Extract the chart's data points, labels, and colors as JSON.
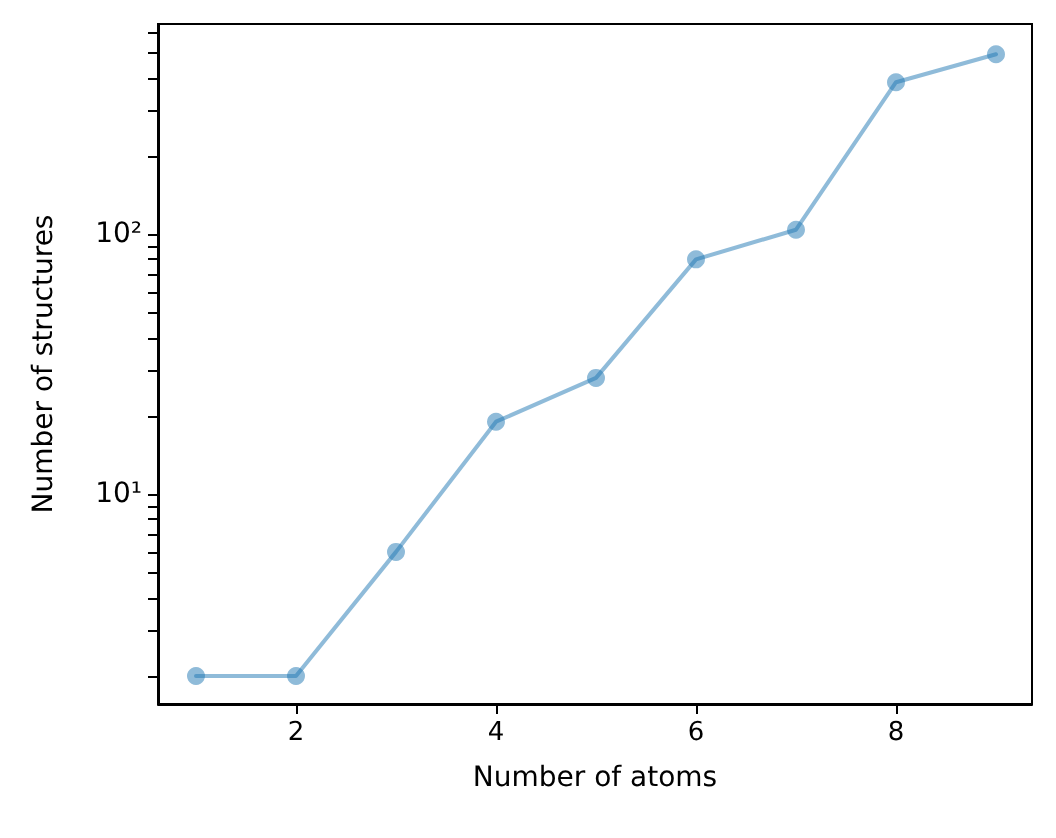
{
  "chart_data": {
    "type": "line",
    "xlabel": "Number of atoms",
    "ylabel": "Number of structures",
    "x": [
      1,
      2,
      3,
      4,
      5,
      6,
      7,
      8,
      9
    ],
    "series": [
      {
        "color": "#1f77b4",
        "values": [
          2,
          2,
          6,
          19,
          28,
          80,
          104,
          384,
          492
        ]
      }
    ],
    "log": "y",
    "marker": "circle",
    "line_style": "solid",
    "xlim": [
      0.62,
      9.36
    ],
    "xticks": [
      2,
      4,
      6,
      8
    ],
    "ylim": [
      1.56,
      643
    ],
    "yticks": [
      {
        "value": 2,
        "label": null
      },
      {
        "value": 3,
        "label": null
      },
      {
        "value": 4,
        "label": null
      },
      {
        "value": 5,
        "label": null
      },
      {
        "value": 6,
        "label": null
      },
      {
        "value": 7,
        "label": null
      },
      {
        "value": 8,
        "label": null
      },
      {
        "value": 9,
        "label": null
      },
      {
        "value": 10,
        "label": "10¹"
      },
      {
        "value": 20,
        "label": null
      },
      {
        "value": 30,
        "label": null
      },
      {
        "value": 40,
        "label": null
      },
      {
        "value": 50,
        "label": null
      },
      {
        "value": 60,
        "label": null
      },
      {
        "value": 70,
        "label": null
      },
      {
        "value": 80,
        "label": null
      },
      {
        "value": 90,
        "label": null
      },
      {
        "value": 100,
        "label": "10²"
      },
      {
        "value": 200,
        "label": null
      },
      {
        "value": 300,
        "label": null
      },
      {
        "value": 400,
        "label": null
      },
      {
        "value": 500,
        "label": null
      },
      {
        "value": 600,
        "label": null
      }
    ]
  }
}
